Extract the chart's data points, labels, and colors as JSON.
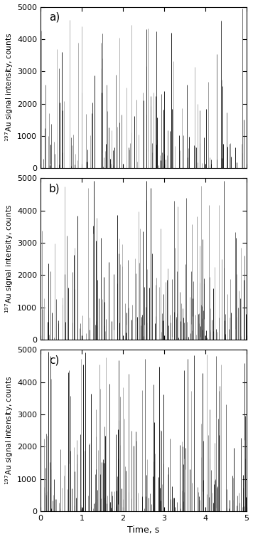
{
  "xlim": [
    0,
    5
  ],
  "ylim": [
    0,
    5000
  ],
  "yticks": [
    0,
    1000,
    2000,
    3000,
    4000,
    5000
  ],
  "xticks": [
    0,
    1,
    2,
    3,
    4,
    5
  ],
  "xlabel": "Time, s",
  "ylabel_prefix": "   ",
  "ylabel_main": "Au signal intensity, counts",
  "ylabel_super": "197",
  "panel_labels": [
    "a)",
    "b)",
    "c)"
  ],
  "seed_a": 10,
  "seed_b": 20,
  "seed_c": 30,
  "n_spikes_a": 150,
  "n_spikes_b": 220,
  "n_spikes_c": 240,
  "background_color": "#ffffff",
  "linewidth": 0.6,
  "figsize": [
    3.56,
    7.57
  ],
  "dpi": 100
}
